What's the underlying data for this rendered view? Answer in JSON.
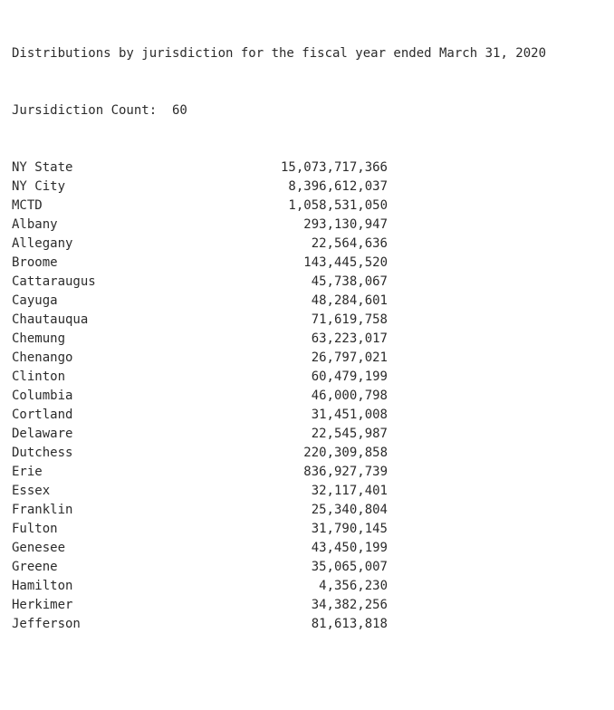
{
  "output": {
    "header": "Distributions by jurisdiction for the fiscal year ended March 31, 2020",
    "count_line": "Jursidiction Count:  60",
    "rows": [
      {
        "name": "NY State",
        "amount": "15,073,717,366"
      },
      {
        "name": "NY City",
        "amount": "8,396,612,037"
      },
      {
        "name": "MCTD",
        "amount": "1,058,531,050"
      },
      {
        "name": "Albany",
        "amount": "293,130,947"
      },
      {
        "name": "Allegany",
        "amount": "22,564,636"
      },
      {
        "name": "Broome",
        "amount": "143,445,520"
      },
      {
        "name": "Cattaraugus",
        "amount": "45,738,067"
      },
      {
        "name": "Cayuga",
        "amount": "48,284,601"
      },
      {
        "name": "Chautauqua",
        "amount": "71,619,758"
      },
      {
        "name": "Chemung",
        "amount": "63,223,017"
      },
      {
        "name": "Chenango",
        "amount": "26,797,021"
      },
      {
        "name": "Clinton",
        "amount": "60,479,199"
      },
      {
        "name": "Columbia",
        "amount": "46,000,798"
      },
      {
        "name": "Cortland",
        "amount": "31,451,008"
      },
      {
        "name": "Delaware",
        "amount": "22,545,987"
      },
      {
        "name": "Dutchess",
        "amount": "220,309,858"
      },
      {
        "name": "Erie",
        "amount": "836,927,739"
      },
      {
        "name": "Essex",
        "amount": "32,117,401"
      },
      {
        "name": "Franklin",
        "amount": "25,340,804"
      },
      {
        "name": "Fulton",
        "amount": "31,790,145"
      },
      {
        "name": "Genesee",
        "amount": "43,450,199"
      },
      {
        "name": "Greene",
        "amount": "35,065,007"
      },
      {
        "name": "Hamilton",
        "amount": "4,356,230"
      },
      {
        "name": "Herkimer",
        "amount": "34,382,256"
      },
      {
        "name": "Jefferson",
        "amount": "81,613,818"
      }
    ]
  }
}
